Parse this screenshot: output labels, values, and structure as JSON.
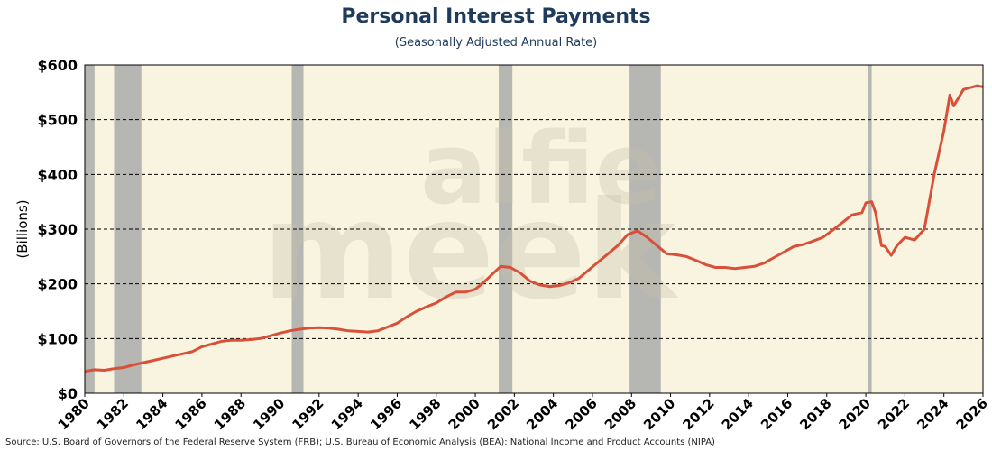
{
  "title": "Personal Interest Payments",
  "subtitle": "(Seasonally Adjusted Annual Rate)",
  "source": "Source: U.S. Board of Governors of the Federal Reserve System (FRB); U.S. Bureau of Economic Analysis (BEA): National Income and Product Accounts (NIPA)",
  "watermark": {
    "line1": "alfie",
    "line2": "meek"
  },
  "colors": {
    "background": "#f8f4df",
    "line": "#d9503a",
    "recession": "#aaaaaa",
    "title": "#1f3b5c"
  },
  "chart_data": {
    "type": "line",
    "title": "Personal Interest Payments",
    "subtitle": "(Seasonally Adjusted Annual Rate)",
    "ylabel": "(Billions)",
    "xlabel": "",
    "xlim": [
      1980,
      2026
    ],
    "ylim": [
      0,
      600
    ],
    "x_ticks": [
      "1980",
      "1982",
      "1984",
      "1986",
      "1988",
      "1990",
      "1992",
      "1994",
      "1996",
      "1998",
      "2000",
      "2002",
      "2004",
      "2006",
      "2008",
      "2010",
      "2012",
      "2014",
      "2016",
      "2018",
      "2020",
      "2022",
      "2024",
      "2026"
    ],
    "y_ticks": [
      "$0",
      "$100",
      "$200",
      "$300",
      "$400",
      "$500",
      "$600"
    ],
    "y_tick_values": [
      0,
      100,
      200,
      300,
      400,
      500,
      600
    ],
    "grid": "horizontal dashed",
    "recessions": [
      [
        1980.0,
        1980.5
      ],
      [
        1981.5,
        1982.9
      ],
      [
        1990.6,
        1991.2
      ],
      [
        2001.2,
        2001.9
      ],
      [
        2007.9,
        2009.5
      ],
      [
        2020.1,
        2020.3
      ]
    ],
    "series": [
      {
        "name": "",
        "points": [
          [
            1980.0,
            40
          ],
          [
            1980.5,
            43
          ],
          [
            1981.0,
            42
          ],
          [
            1981.5,
            45
          ],
          [
            1982.0,
            47
          ],
          [
            1982.5,
            52
          ],
          [
            1983.0,
            56
          ],
          [
            1983.5,
            60
          ],
          [
            1984.0,
            64
          ],
          [
            1984.5,
            68
          ],
          [
            1985.0,
            72
          ],
          [
            1985.5,
            76
          ],
          [
            1986.0,
            85
          ],
          [
            1986.5,
            90
          ],
          [
            1987.0,
            95
          ],
          [
            1987.5,
            97
          ],
          [
            1988.0,
            97
          ],
          [
            1988.5,
            98
          ],
          [
            1989.0,
            100
          ],
          [
            1989.5,
            105
          ],
          [
            1990.0,
            110
          ],
          [
            1990.5,
            114
          ],
          [
            1991.0,
            117
          ],
          [
            1991.5,
            119
          ],
          [
            1992.0,
            120
          ],
          [
            1992.5,
            119
          ],
          [
            1993.0,
            117
          ],
          [
            1993.5,
            114
          ],
          [
            1994.0,
            113
          ],
          [
            1994.5,
            112
          ],
          [
            1995.0,
            114
          ],
          [
            1995.5,
            121
          ],
          [
            1996.0,
            128
          ],
          [
            1996.5,
            140
          ],
          [
            1997.0,
            150
          ],
          [
            1997.5,
            158
          ],
          [
            1998.0,
            165
          ],
          [
            1998.5,
            176
          ],
          [
            1999.0,
            185
          ],
          [
            1999.5,
            185
          ],
          [
            2000.0,
            190
          ],
          [
            2000.5,
            205
          ],
          [
            2001.0,
            222
          ],
          [
            2001.3,
            232
          ],
          [
            2001.8,
            230
          ],
          [
            2002.3,
            220
          ],
          [
            2002.8,
            205
          ],
          [
            2003.3,
            198
          ],
          [
            2003.8,
            195
          ],
          [
            2004.3,
            197
          ],
          [
            2004.8,
            202
          ],
          [
            2005.3,
            210
          ],
          [
            2005.8,
            225
          ],
          [
            2006.3,
            240
          ],
          [
            2006.8,
            255
          ],
          [
            2007.3,
            270
          ],
          [
            2007.8,
            290
          ],
          [
            2008.3,
            297
          ],
          [
            2008.8,
            285
          ],
          [
            2009.3,
            270
          ],
          [
            2009.8,
            255
          ],
          [
            2010.3,
            253
          ],
          [
            2010.8,
            250
          ],
          [
            2011.3,
            243
          ],
          [
            2011.8,
            235
          ],
          [
            2012.3,
            230
          ],
          [
            2012.8,
            230
          ],
          [
            2013.3,
            228
          ],
          [
            2013.8,
            230
          ],
          [
            2014.3,
            232
          ],
          [
            2014.8,
            238
          ],
          [
            2015.3,
            248
          ],
          [
            2015.8,
            258
          ],
          [
            2016.3,
            268
          ],
          [
            2016.8,
            272
          ],
          [
            2017.3,
            278
          ],
          [
            2017.8,
            285
          ],
          [
            2018.3,
            298
          ],
          [
            2018.8,
            312
          ],
          [
            2019.3,
            326
          ],
          [
            2019.8,
            330
          ],
          [
            2020.0,
            348
          ],
          [
            2020.3,
            350
          ],
          [
            2020.5,
            330
          ],
          [
            2020.8,
            270
          ],
          [
            2021.0,
            268
          ],
          [
            2021.3,
            252
          ],
          [
            2021.6,
            270
          ],
          [
            2022.0,
            285
          ],
          [
            2022.5,
            280
          ],
          [
            2023.0,
            300
          ],
          [
            2023.5,
            400
          ],
          [
            2024.0,
            480
          ],
          [
            2024.3,
            545
          ],
          [
            2024.5,
            525
          ],
          [
            2025.0,
            555
          ],
          [
            2025.5,
            560
          ],
          [
            2025.7,
            562
          ],
          [
            2026.0,
            560
          ]
        ]
      }
    ]
  }
}
